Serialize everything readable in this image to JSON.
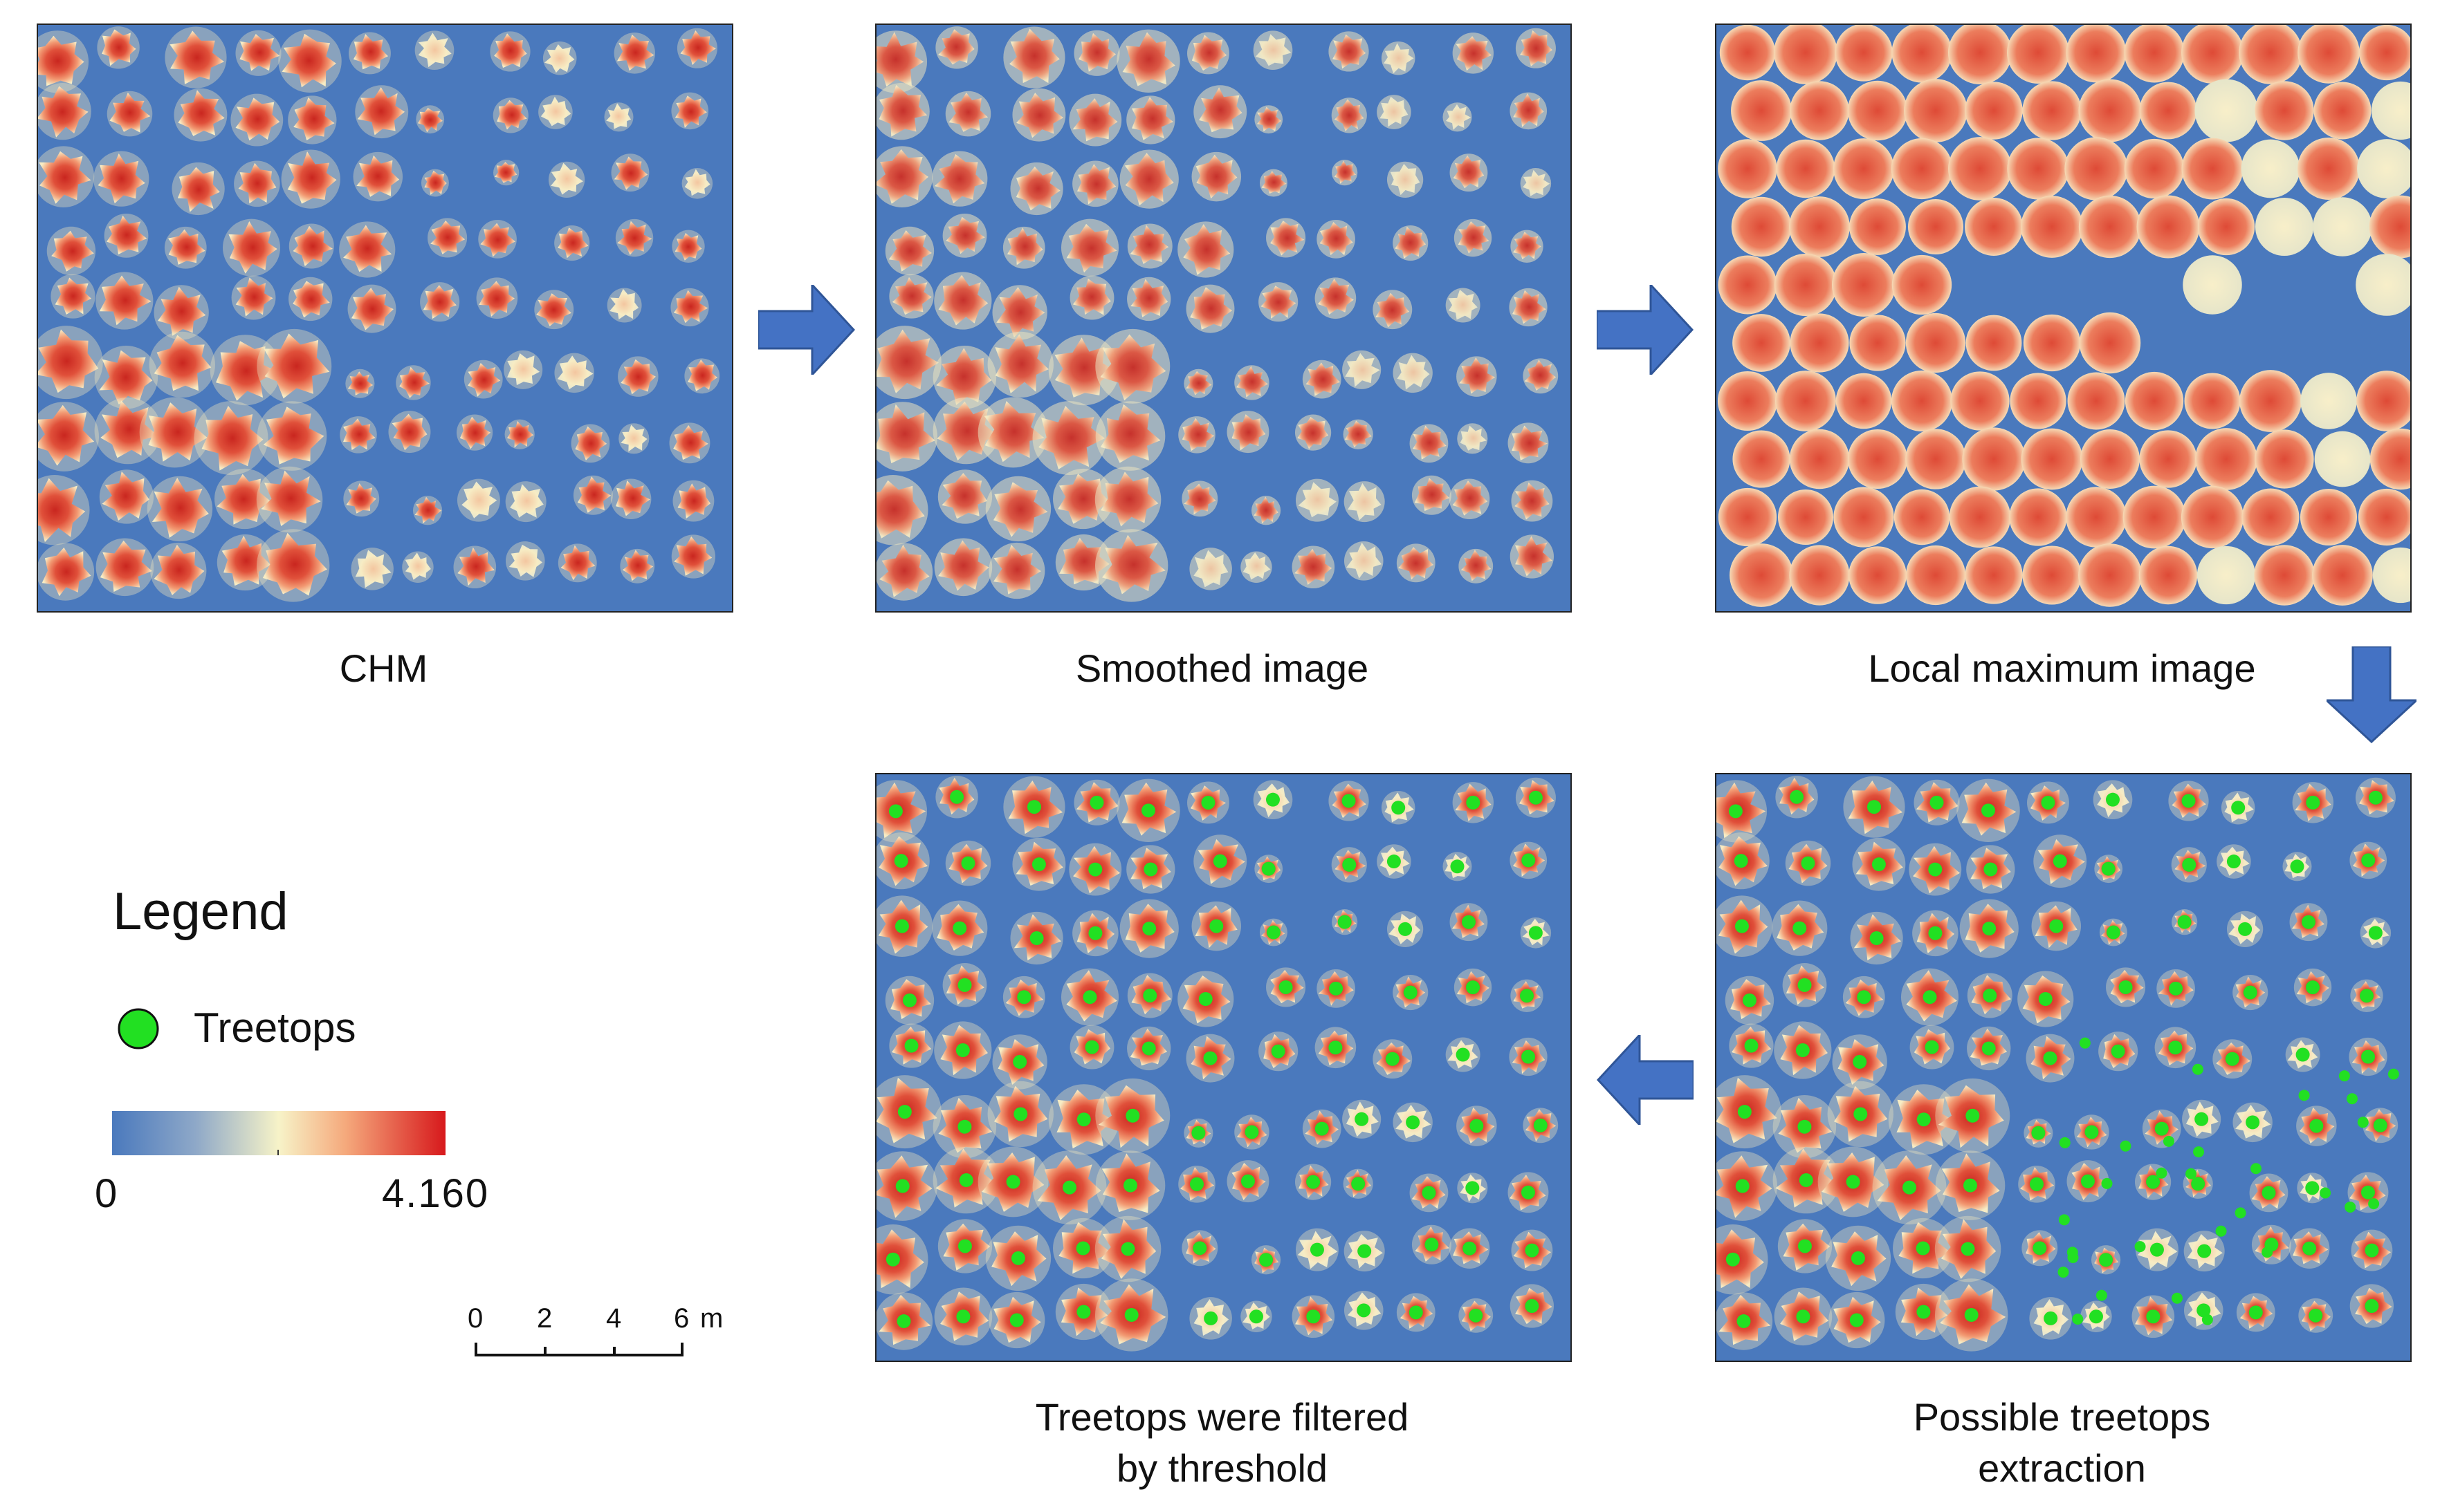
{
  "panels": {
    "chm": {
      "caption": "CHM"
    },
    "smoothed": {
      "caption": "Smoothed image"
    },
    "local_max": {
      "caption": "Local maximum image"
    },
    "possible": {
      "caption_line1": "Possible treetops",
      "caption_line2": "extraction"
    },
    "filtered": {
      "caption_line1": "Treetops were filtered",
      "caption_line2": "by threshold"
    }
  },
  "legend": {
    "title": "Legend",
    "treetops_label": "Treetops",
    "ramp_min": "0",
    "ramp_max": "4.160"
  },
  "scalebar": {
    "ticks": [
      "0",
      "2",
      "4",
      "6"
    ],
    "unit": "m"
  },
  "colors": {
    "background_blue": "#4a79bd",
    "crown_red": "#d8382e",
    "crown_orange": "#ef8a62",
    "crown_cream": "#f7f0c2",
    "arrow_blue": "#4472c4",
    "treetop_green": "#22e022"
  },
  "icons": {
    "flow_arrow": "arrow-right-icon",
    "treetop_marker": "green-circle-icon"
  }
}
